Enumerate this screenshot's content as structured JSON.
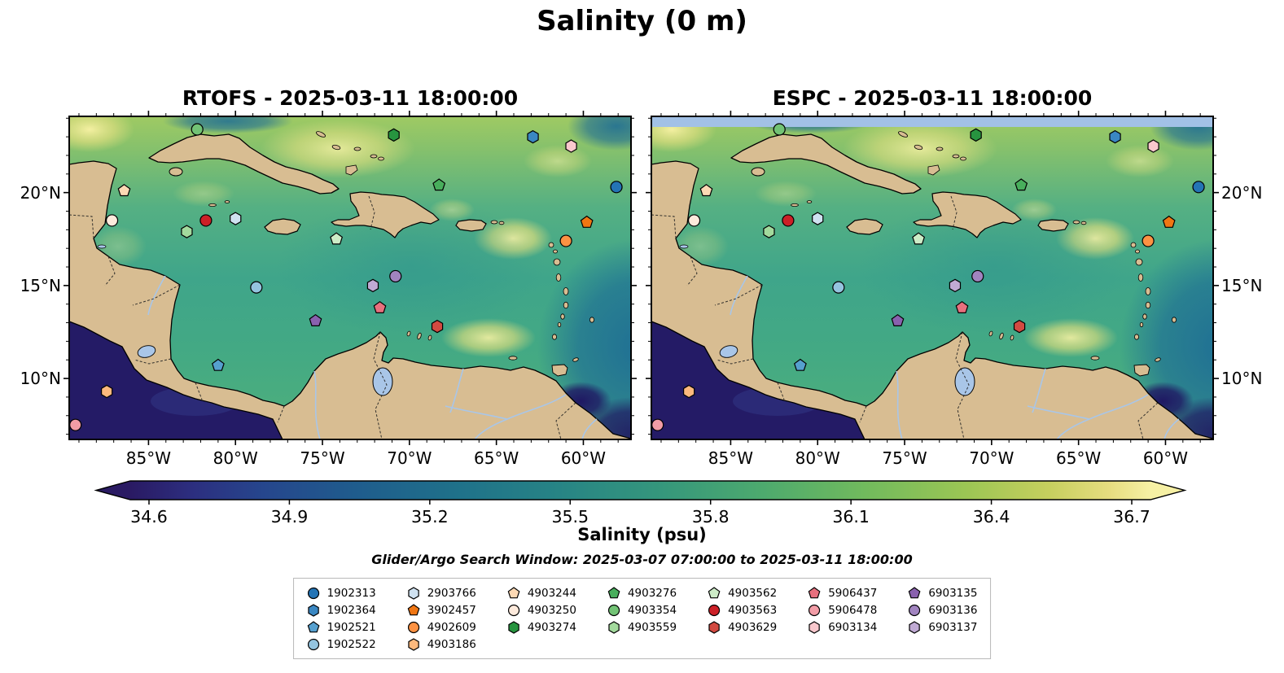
{
  "chart_data": {
    "type": "heatmap",
    "title": "Salinity (0 m)",
    "subtitle": "Glider/Argo Search Window: 2025-03-07 07:00:00 to 2025-03-11 18:00:00",
    "panels": [
      {
        "model": "RTOFS",
        "title": "RTOFS - 2025-03-11 18:00:00"
      },
      {
        "model": "ESPC",
        "title": "ESPC - 2025-03-11 18:00:00"
      }
    ],
    "axes": {
      "lon_range": [
        -89.56,
        -57.26
      ],
      "lat_range": [
        6.72,
        24.1
      ],
      "lon_ticks": [
        {
          "lon": -85,
          "label": "85°W"
        },
        {
          "lon": -80,
          "label": "80°W"
        },
        {
          "lon": -75,
          "label": "75°W"
        },
        {
          "lon": -70,
          "label": "70°W"
        },
        {
          "lon": -65,
          "label": "65°W"
        },
        {
          "lon": -60,
          "label": "60°W"
        }
      ],
      "lat_ticks": [
        {
          "lat": 10,
          "label": "10°N"
        },
        {
          "lat": 15,
          "label": "15°N"
        },
        {
          "lat": 20,
          "label": "20°N"
        }
      ]
    },
    "colorbar": {
      "label": "Salinity (psu)",
      "vmin": 34.56,
      "vmax": 36.74,
      "extend": "both",
      "ticks": [
        {
          "value": 34.6,
          "label": "34.6"
        },
        {
          "value": 34.9,
          "label": "34.9"
        },
        {
          "value": 35.2,
          "label": "35.2"
        },
        {
          "value": 35.5,
          "label": "35.5"
        },
        {
          "value": 35.8,
          "label": "35.8"
        },
        {
          "value": 36.1,
          "label": "36.1"
        },
        {
          "value": 36.4,
          "label": "36.4"
        },
        {
          "value": 36.7,
          "label": "36.7"
        }
      ],
      "stops": [
        [
          0.0,
          "#2a1a63"
        ],
        [
          0.06,
          "#2c2e7f"
        ],
        [
          0.13,
          "#26468d"
        ],
        [
          0.22,
          "#1f5c8d"
        ],
        [
          0.32,
          "#1f718a"
        ],
        [
          0.42,
          "#278485"
        ],
        [
          0.52,
          "#35977c"
        ],
        [
          0.62,
          "#4daa6e"
        ],
        [
          0.72,
          "#71ba5d"
        ],
        [
          0.82,
          "#9cc654"
        ],
        [
          0.9,
          "#c6cf5e"
        ],
        [
          0.96,
          "#e7dd80"
        ],
        [
          1.0,
          "#f6f0a4"
        ]
      ]
    },
    "legend_column_sizes": [
      4,
      4,
      3,
      3,
      3,
      3,
      3
    ],
    "markers": [
      {
        "id": "1902313",
        "shape": "circle",
        "color": "#2474b5",
        "lon": -58.1,
        "lat": 20.3
      },
      {
        "id": "1902364",
        "shape": "hexagon",
        "color": "#3a87c2",
        "lon": -62.9,
        "lat": 23.0
      },
      {
        "id": "1902521",
        "shape": "pentagon",
        "color": "#56a0cf",
        "lon": -81.0,
        "lat": 10.7
      },
      {
        "id": "1902522",
        "shape": "circle",
        "color": "#94c4df",
        "lon": -78.8,
        "lat": 14.9
      },
      {
        "id": "2903766",
        "shape": "hexagon",
        "color": "#cfe1f0",
        "lon": -80.0,
        "lat": 18.6
      },
      {
        "id": "3902457",
        "shape": "pentagon",
        "color": "#f07613",
        "lon": -59.8,
        "lat": 18.4
      },
      {
        "id": "4902609",
        "shape": "circle",
        "color": "#fd9243",
        "lon": -61.0,
        "lat": 17.4
      },
      {
        "id": "4903186",
        "shape": "hexagon",
        "color": "#fdb97d",
        "lon": -87.4,
        "lat": 9.3
      },
      {
        "id": "4903244",
        "shape": "pentagon",
        "color": "#fdd9b4",
        "lon": -86.4,
        "lat": 20.1
      },
      {
        "id": "4903250",
        "shape": "circle",
        "color": "#fdeadc",
        "lon": -87.1,
        "lat": 18.5
      },
      {
        "id": "4903274",
        "shape": "hexagon",
        "color": "#27943f",
        "lon": -70.9,
        "lat": 23.1
      },
      {
        "id": "4903276",
        "shape": "pentagon",
        "color": "#48ae5c",
        "lon": -68.3,
        "lat": 20.4
      },
      {
        "id": "4903354",
        "shape": "circle",
        "color": "#72c375",
        "lon": -82.2,
        "lat": 23.4
      },
      {
        "id": "4903559",
        "shape": "hexagon",
        "color": "#a3da9d",
        "lon": -82.8,
        "lat": 17.9
      },
      {
        "id": "4903562",
        "shape": "pentagon",
        "color": "#cdecc7",
        "lon": -74.2,
        "lat": 17.5
      },
      {
        "id": "4903563",
        "shape": "circle",
        "color": "#cc2027",
        "lon": -81.7,
        "lat": 18.5
      },
      {
        "id": "4903629",
        "shape": "hexagon",
        "color": "#d24a41",
        "lon": -68.4,
        "lat": 12.8
      },
      {
        "id": "5906437",
        "shape": "pentagon",
        "color": "#e8707e",
        "lon": -71.7,
        "lat": 13.8
      },
      {
        "id": "5906478",
        "shape": "circle",
        "color": "#f29ca6",
        "lon": -89.2,
        "lat": 7.5
      },
      {
        "id": "6903134",
        "shape": "hexagon",
        "color": "#f9c8cd",
        "lon": -60.7,
        "lat": 22.5
      },
      {
        "id": "6903135",
        "shape": "pentagon",
        "color": "#8961ae",
        "lon": -75.4,
        "lat": 13.1
      },
      {
        "id": "6903136",
        "shape": "circle",
        "color": "#a184c0",
        "lon": -70.8,
        "lat": 15.5
      },
      {
        "id": "6903137",
        "shape": "hexagon",
        "color": "#c0aad4",
        "lon": -72.1,
        "lat": 15.0
      }
    ]
  }
}
